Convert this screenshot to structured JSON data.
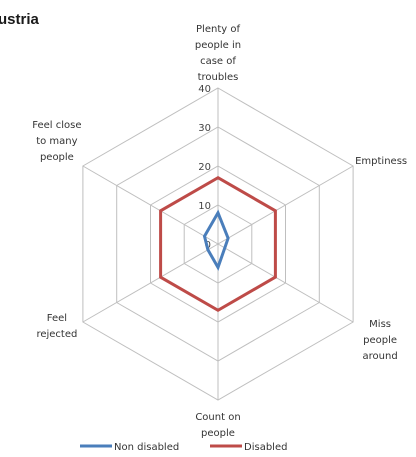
{
  "chart_data": {
    "type": "radar",
    "title": "ustria",
    "axes": [
      [
        "Plenty of",
        "people in",
        "case of",
        "troubles"
      ],
      [
        "Emptiness"
      ],
      [
        "Miss",
        "people",
        "around"
      ],
      [
        "Count on",
        "people"
      ],
      [
        "Feel",
        "rejected"
      ],
      [
        "Feel close",
        "to many",
        "people"
      ]
    ],
    "rlim": [
      0,
      40
    ],
    "ticks": [
      0,
      10,
      20,
      30,
      40
    ],
    "tick_labels": [
      "0",
      "10",
      "20",
      "30",
      "40"
    ],
    "series": [
      {
        "name": "Non disabled",
        "color": "#4a7ebb",
        "values": [
          8,
          3,
          2,
          6,
          3,
          4
        ]
      },
      {
        "name": "Disabled",
        "color": "#be4b48",
        "values": [
          17,
          17,
          17,
          17,
          17,
          17
        ]
      }
    ],
    "grid": true,
    "legend_position": "bottom"
  }
}
